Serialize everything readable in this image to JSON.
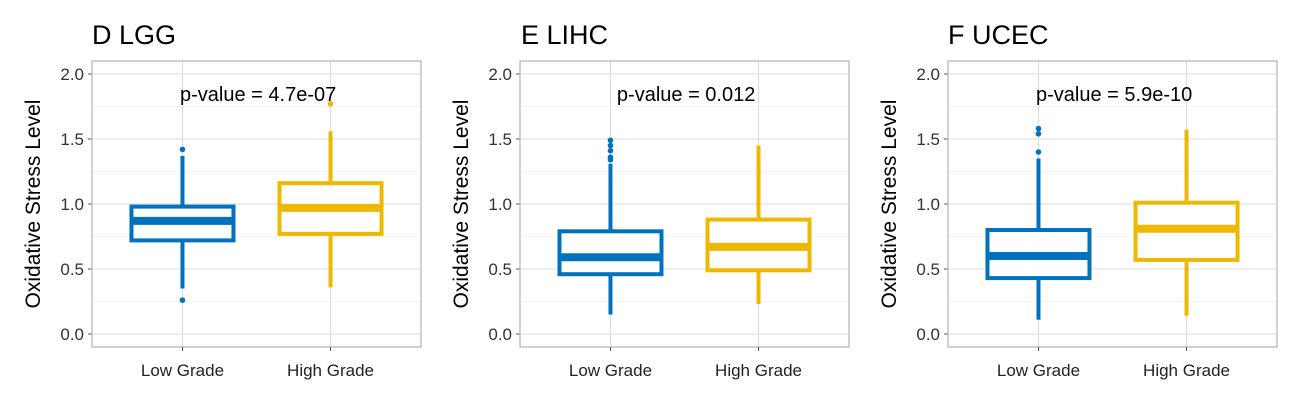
{
  "chart_data": [
    {
      "type": "box",
      "title": "D  LGG",
      "ylabel": "Oxidative Stress Level",
      "annotation": "p-value = 4.7e-07",
      "ylim": [
        -0.1,
        2.1
      ],
      "yticks": [
        "0.0",
        "0.5",
        "1.0",
        "1.5",
        "2.0"
      ],
      "grid": true,
      "categories": [
        "Low Grade",
        "High Grade"
      ],
      "boxes": [
        {
          "category": "Low Grade",
          "whisker_low": 0.35,
          "q1": 0.72,
          "median": 0.87,
          "q3": 0.98,
          "whisker_high": 1.37,
          "outliers": [
            0.26,
            1.42
          ],
          "color": "#0072BD"
        },
        {
          "category": "High Grade",
          "whisker_low": 0.36,
          "q1": 0.77,
          "median": 0.97,
          "q3": 1.16,
          "whisker_high": 1.56,
          "outliers": [
            1.77
          ],
          "color": "#EDB800"
        }
      ]
    },
    {
      "type": "box",
      "title": "E  LIHC",
      "ylabel": "Oxidative Stress Level",
      "annotation": "p-value = 0.012",
      "ylim": [
        -0.1,
        2.1
      ],
      "yticks": [
        "0.0",
        "0.5",
        "1.0",
        "1.5",
        "2.0"
      ],
      "grid": true,
      "categories": [
        "Low Grade",
        "High Grade"
      ],
      "boxes": [
        {
          "category": "Low Grade",
          "whisker_low": 0.15,
          "q1": 0.46,
          "median": 0.59,
          "q3": 0.79,
          "whisker_high": 1.31,
          "outliers": [
            1.34,
            1.36,
            1.41,
            1.45,
            1.49
          ],
          "color": "#0072BD"
        },
        {
          "category": "High Grade",
          "whisker_low": 0.23,
          "q1": 0.49,
          "median": 0.67,
          "q3": 0.88,
          "whisker_high": 1.45,
          "outliers": [],
          "color": "#EDB800"
        }
      ]
    },
    {
      "type": "box",
      "title": "F  UCEC",
      "ylabel": "Oxidative Stress Level",
      "annotation": "p-value = 5.9e-10",
      "ylim": [
        -0.1,
        2.1
      ],
      "yticks": [
        "0.0",
        "0.5",
        "1.0",
        "1.5",
        "2.0"
      ],
      "grid": true,
      "categories": [
        "Low Grade",
        "High Grade"
      ],
      "boxes": [
        {
          "category": "Low Grade",
          "whisker_low": 0.11,
          "q1": 0.43,
          "median": 0.6,
          "q3": 0.8,
          "whisker_high": 1.35,
          "outliers": [
            1.4,
            1.54,
            1.58
          ],
          "color": "#0072BD"
        },
        {
          "category": "High Grade",
          "whisker_low": 0.14,
          "q1": 0.57,
          "median": 0.81,
          "q3": 1.01,
          "whisker_high": 1.57,
          "outliers": [],
          "color": "#EDB800"
        }
      ]
    }
  ]
}
